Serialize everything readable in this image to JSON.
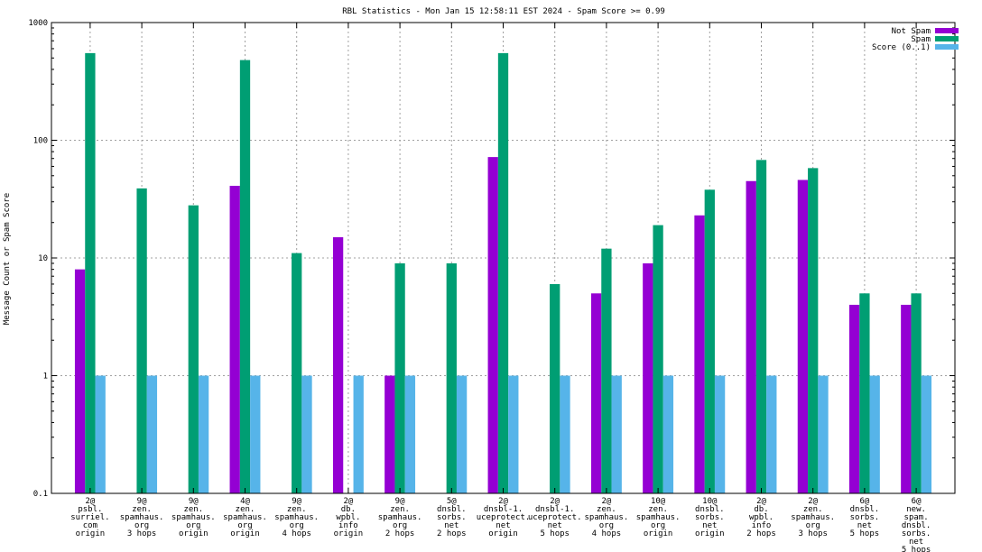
{
  "chart_data": {
    "type": "bar",
    "title": "RBL Statistics - Mon Jan 15 12:58:11 EST 2024 - Spam Score >= 0.99",
    "xlabel": "",
    "ylabel": "Message Count or Spam Score",
    "yscale": "log",
    "ylim": [
      0.1,
      1000
    ],
    "yticks": [
      "0.1",
      "1",
      "10",
      "100",
      "1000"
    ],
    "grid": true,
    "legend_position": "top-right",
    "categories": [
      [
        "2@",
        "psbl.",
        "surriel.",
        "com",
        "origin"
      ],
      [
        "9@",
        "zen.",
        "spamhaus.",
        "org",
        "3 hops"
      ],
      [
        "9@",
        "zen.",
        "spamhaus.",
        "org",
        "origin"
      ],
      [
        "4@",
        "zen.",
        "spamhaus.",
        "org",
        "origin"
      ],
      [
        "9@",
        "zen.",
        "spamhaus.",
        "org",
        "4 hops"
      ],
      [
        "2@",
        "db.",
        "wpbl.",
        "info",
        "origin"
      ],
      [
        "9@",
        "zen.",
        "spamhaus.",
        "org",
        "2 hops"
      ],
      [
        "5@",
        "dnsbl.",
        "sorbs.",
        "net",
        "2 hops"
      ],
      [
        "2@",
        "dnsbl-1.",
        "uceprotect.",
        "net",
        "origin"
      ],
      [
        "2@",
        "dnsbl-1.",
        "uceprotect.",
        "net",
        "5 hops"
      ],
      [
        "2@",
        "zen.",
        "spamhaus.",
        "org",
        "4 hops"
      ],
      [
        "10@",
        "zen.",
        "spamhaus.",
        "org",
        "origin"
      ],
      [
        "10@",
        "dnsbl.",
        "sorbs.",
        "net",
        "origin"
      ],
      [
        "2@",
        "db.",
        "wpbl.",
        "info",
        "2 hops"
      ],
      [
        "2@",
        "zen.",
        "spamhaus.",
        "org",
        "3 hops"
      ],
      [
        "6@",
        "dnsbl.",
        "sorbs.",
        "net",
        "5 hops"
      ],
      [
        "6@",
        "new.",
        "spam.",
        "dnsbl.",
        "sorbs.",
        "net",
        "5 hops"
      ]
    ],
    "series": [
      {
        "name": "Not Spam",
        "color": "#9400d3",
        "values": [
          8,
          null,
          null,
          41,
          null,
          15,
          1,
          null,
          72,
          null,
          5,
          9,
          23,
          45,
          46,
          4,
          4
        ]
      },
      {
        "name": "Spam",
        "color": "#009e73",
        "values": [
          550,
          39,
          28,
          480,
          11,
          null,
          9,
          9,
          550,
          6,
          12,
          19,
          38,
          68,
          58,
          5,
          5
        ]
      },
      {
        "name": "Score (0..1)",
        "color": "#56b4e9",
        "values": [
          1,
          1,
          1,
          1,
          1,
          1,
          1,
          1,
          1,
          1,
          1,
          1,
          1,
          1,
          1,
          1,
          1
        ]
      }
    ]
  }
}
